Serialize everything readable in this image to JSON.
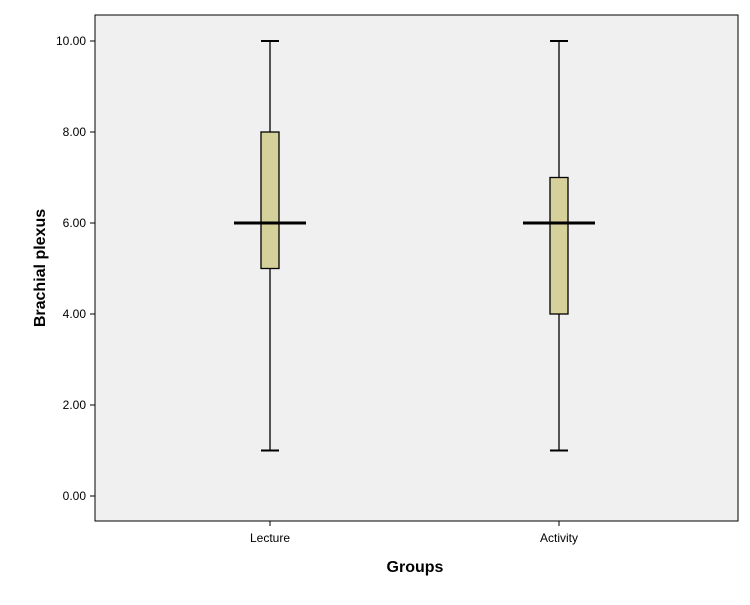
{
  "chart_data": {
    "type": "boxplot",
    "title": "",
    "xlabel": "Groups",
    "ylabel": "Brachial plexus",
    "categories": [
      "Lecture",
      "Activity"
    ],
    "boxes": [
      {
        "category": "Lecture",
        "min": 1.0,
        "q1": 5.0,
        "median": 6.0,
        "q3": 8.0,
        "max": 10.0
      },
      {
        "category": "Activity",
        "min": 1.0,
        "q1": 4.0,
        "median": 6.0,
        "q3": 7.0,
        "max": 10.0
      }
    ],
    "ylim": [
      0,
      10
    ],
    "yticks": [
      0,
      2,
      4,
      6,
      8,
      10
    ],
    "ytick_labels": [
      "0.00",
      "2.00",
      "4.00",
      "6.00",
      "8.00",
      "10.00"
    ],
    "grid": false,
    "colors": {
      "plot_background": "#f0f0f0",
      "box_fill": "#d6d09a",
      "line": "#000000"
    }
  }
}
